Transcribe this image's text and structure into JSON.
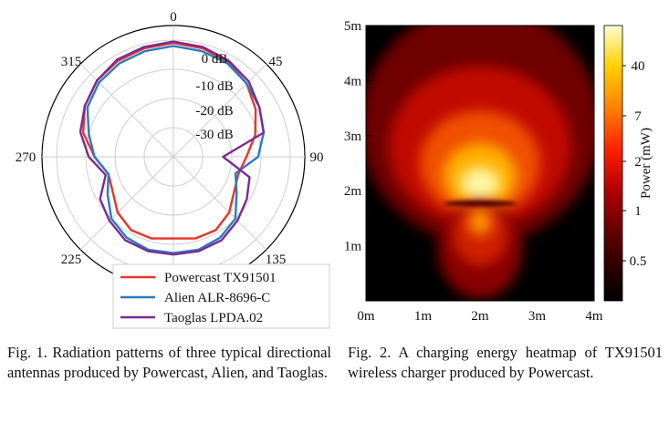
{
  "chart_data": [
    {
      "type": "polar-line",
      "angle_ticks": [
        "0",
        "45",
        "90",
        "135",
        "180",
        "225",
        "270",
        "315"
      ],
      "radial_ticks": [
        "0 dB",
        "-10 dB",
        "-20 dB",
        "-30 dB"
      ],
      "radial_range": [
        -40,
        5
      ],
      "angles": [
        0,
        15,
        30,
        45,
        60,
        75,
        90,
        105,
        120,
        135,
        150,
        165,
        180,
        195,
        210,
        225,
        240,
        255,
        270,
        285,
        300,
        315,
        330,
        345
      ],
      "series": [
        {
          "name": "Powercast TX91501",
          "color": "#e8342e",
          "values": [
            -1,
            -1.5,
            -2.5,
            -4.5,
            -7.5,
            -11,
            -15,
            -17,
            -16,
            -13,
            -11,
            -11,
            -12,
            -11,
            -11,
            -13,
            -16,
            -17,
            -13,
            -8,
            -5,
            -3,
            -2,
            -1.5
          ]
        },
        {
          "name": "Alien ALR-8696-C",
          "color": "#2b7bbf",
          "values": [
            -2,
            -2.5,
            -3,
            -4.5,
            -6,
            -8,
            -11,
            -18,
            -15,
            -10,
            -8,
            -7,
            -7,
            -7,
            -8,
            -10,
            -14,
            -17,
            -13,
            -10,
            -6,
            -4,
            -3,
            -2.5
          ]
        },
        {
          "name": "Taoglas LPDA.02",
          "color": "#7b2c8f",
          "values": [
            -0.5,
            -1,
            -2,
            -3.5,
            -6,
            -8,
            -23,
            -13,
            -11,
            -9,
            -7,
            -6.5,
            -6.5,
            -6.5,
            -7,
            -9,
            -11,
            -16,
            -11,
            -7,
            -5,
            -3,
            -1.5,
            -1
          ]
        }
      ],
      "legend_placement": "bottom-right"
    },
    {
      "type": "heatmap",
      "x_ticks": [
        "0m",
        "1m",
        "2m",
        "3m",
        "4m"
      ],
      "y_ticks": [
        "1m",
        "2m",
        "3m",
        "4m",
        "5m"
      ],
      "xlim": [
        0,
        4
      ],
      "ylim": [
        0,
        5
      ],
      "source_point": [
        2.0,
        1.9
      ],
      "colorbar": {
        "label": "Power (mW)",
        "ticks": [
          "40",
          "7",
          "2",
          "1",
          "0.5"
        ],
        "colormap": "hot"
      }
    }
  ],
  "captions": {
    "fig1": "Fig. 1.  Radiation patterns of three typical directional antennas produced by Powercast, Alien, and Taoglas.",
    "fig2": "Fig. 2.  A charging energy heatmap of TX91501 wireless charger produced by Powercast."
  }
}
